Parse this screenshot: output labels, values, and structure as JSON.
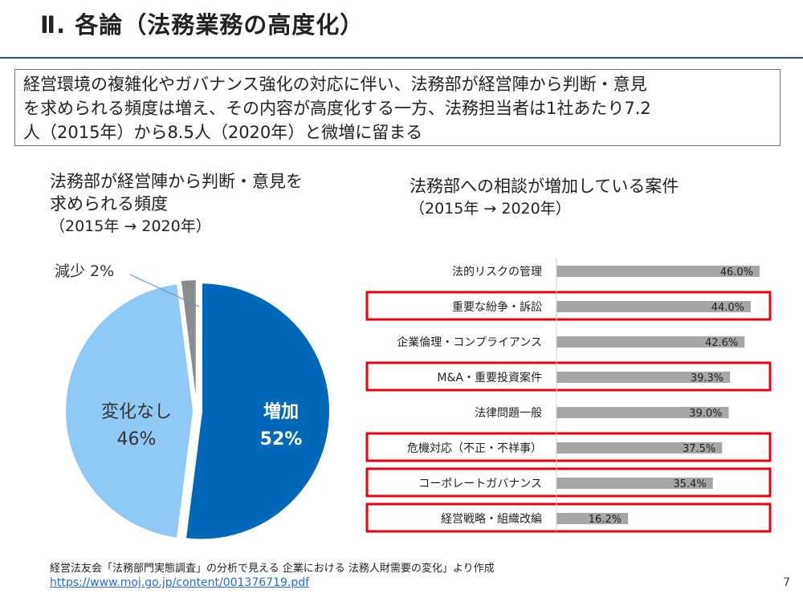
{
  "slide": {
    "title": "Ⅱ. 各論（法務業務の高度化）",
    "summary_lines": [
      "経営環境の複雑化やガバナンス強化の対応に伴い、法務部が経営陣から判断・意見",
      "を求められる頻度は増え、その内容が高度化する一方、法務担当者は1社あたり7.2",
      "人（2015年）から8.5人（2020年）と微増に留まる"
    ],
    "left_heading": [
      "法務部が経営陣から判断・意見を",
      "求められる頻度",
      "（2015年 → 2020年）"
    ],
    "right_heading": [
      "法務部への相談が増加している案件",
      "（2015年 → 2020年）"
    ],
    "source": "経営法友会「法務部門実態調査」の分析で見える 企業における 法務人財需要の変化」より作成",
    "source_url": "https://www.moj.go.jp/content/001376719.pdf",
    "page_number": "7"
  },
  "colors": {
    "increase": "#0068b7",
    "no_change": "#8fcaf7",
    "decrease": "#8c8c8c",
    "bar": "#a6a6a6",
    "highlight": "#e60012",
    "rule": "#2e4f7e"
  },
  "chart_data": [
    {
      "type": "pie",
      "title": "",
      "slices": [
        {
          "label": "増加",
          "value": 52,
          "value_label": "52%",
          "color": "#0068b7"
        },
        {
          "label": "変化なし",
          "value": 46,
          "value_label": "46%",
          "color": "#8fcaf7"
        },
        {
          "label": "減少",
          "value": 2,
          "value_label": "2%",
          "color": "#8c8c8c"
        }
      ],
      "exploded": true
    },
    {
      "type": "bar",
      "orientation": "horizontal",
      "categories": [
        "法的リスクの管理",
        "重要な紛争・訴訟",
        "企業倫理・コンプライアンス",
        "M&A・重要投資案件",
        "法律問題一般",
        "危機対応（不正・不祥事）",
        "コーポレートガバナンス",
        "経営戦略・組織改編"
      ],
      "values": [
        46.0,
        44.0,
        42.6,
        39.3,
        39.0,
        37.5,
        35.4,
        16.2
      ],
      "value_labels": [
        "46.0%",
        "44.0%",
        "42.6%",
        "39.3%",
        "39.0%",
        "37.5%",
        "35.4%",
        "16.2%"
      ],
      "highlighted": [
        false,
        true,
        false,
        true,
        false,
        true,
        true,
        true
      ],
      "xlim": [
        0,
        100
      ],
      "unit": "%"
    }
  ]
}
